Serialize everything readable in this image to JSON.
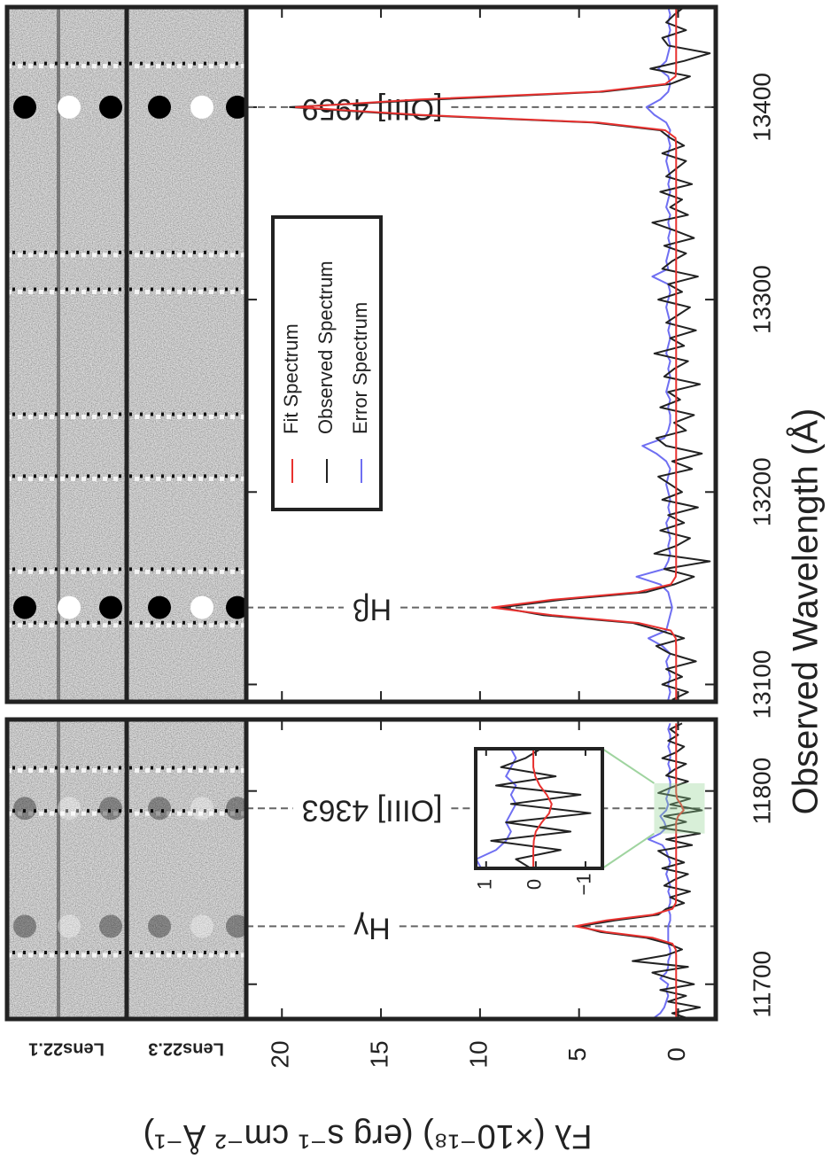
{
  "chart_data": [
    {
      "type": "line",
      "ylabel": "Fλ (×10⁻¹⁸) (erg s⁻¹ cm⁻² Å⁻¹)",
      "strip_labels": [
        "Lens22.1",
        "Lens22.3"
      ],
      "x": [
        11682,
        11685,
        11688,
        11691,
        11694,
        11697,
        11700,
        11703,
        11706,
        11709,
        11712,
        11715,
        11718,
        11721,
        11724,
        11727,
        11730,
        11733,
        11736,
        11739,
        11742,
        11745,
        11748,
        11751,
        11754,
        11757,
        11760,
        11763,
        11766,
        11769,
        11772,
        11775,
        11778,
        11781,
        11784,
        11787,
        11790,
        11793,
        11796,
        11799,
        11802,
        11805,
        11808,
        11811,
        11814,
        11817,
        11820,
        11823,
        11826,
        11829,
        11832,
        11835
      ],
      "xlim": [
        11682,
        11837
      ],
      "xticks": [
        11700,
        11800
      ],
      "ylim": [
        -1.9,
        21.8
      ],
      "yticks": [
        0,
        5,
        10,
        15,
        20
      ],
      "lines": [
        {
          "label": "Hγ",
          "x": 11730
        },
        {
          "label": "[OIII] 4363",
          "x": 11791
        }
      ],
      "series": [
        {
          "color": "#e8312f",
          "values": [
            0.1,
            0.1,
            0.1,
            0.1,
            0.1,
            0.1,
            0.1,
            0.1,
            0.1,
            0.1,
            0.1,
            0.1,
            0.12,
            0.29,
            1.27,
            3.63,
            5.2,
            3.63,
            1.27,
            0.29,
            0.12,
            0.1,
            0.1,
            0.1,
            0.1,
            0.1,
            0.1,
            0.1,
            0.1,
            0.1,
            0.1,
            0.1,
            0.1,
            0.1,
            0.1,
            0.0,
            -0.28,
            -0.15,
            0.05,
            0.1,
            0.1,
            0.1,
            0.1,
            0.1,
            0.1,
            0.1,
            0.1,
            0.1,
            0.1,
            0.1,
            0.1,
            0.1
          ]
        },
        {
          "color": "#222222",
          "values": [
            -0.6,
            0.3,
            -1.1,
            0.5,
            -0.4,
            0.9,
            -0.8,
            0.4,
            1.3,
            -0.5,
            2.3,
            0.6,
            -0.2,
            0.5,
            1.6,
            3.9,
            5.0,
            3.2,
            1.0,
            0.6,
            -0.3,
            0.4,
            -0.6,
            0.7,
            0.2,
            -0.5,
            0.8,
            -0.3,
            0.5,
            1.0,
            -0.7,
            0.6,
            -1.1,
            0.9,
            -0.4,
            0.7,
            -1.2,
            0.4,
            -0.6,
            1.0,
            0.3,
            -0.5,
            0.6,
            0.2,
            -0.4,
            0.8,
            0.1,
            -0.3,
            0.5,
            0.0,
            0.4,
            -0.2
          ]
        },
        {
          "color": "#6f6ff2",
          "values": [
            1.3,
            0.9,
            0.7,
            0.6,
            0.5,
            0.6,
            0.5,
            0.9,
            0.6,
            0.5,
            0.5,
            0.4,
            0.4,
            0.5,
            0.5,
            0.5,
            0.5,
            0.4,
            0.4,
            0.5,
            0.4,
            0.4,
            0.5,
            0.4,
            0.5,
            0.6,
            0.5,
            0.4,
            0.5,
            0.6,
            0.8,
            1.5,
            0.9,
            0.6,
            0.7,
            0.9,
            0.6,
            0.5,
            0.6,
            0.5,
            0.4,
            0.4,
            0.5,
            0.4,
            0.5,
            0.4,
            0.4,
            0.5,
            0.4,
            0.4,
            0.5,
            0.4
          ]
        }
      ]
    },
    {
      "type": "line",
      "xlabel": "Observed Wavelength (Å)",
      "legend": "upper center",
      "x": [
        13092,
        13096,
        13100,
        13104,
        13108,
        13112,
        13116,
        13120,
        13124,
        13128,
        13132,
        13136,
        13140,
        13144,
        13148,
        13152,
        13156,
        13160,
        13164,
        13168,
        13172,
        13176,
        13180,
        13184,
        13188,
        13192,
        13196,
        13200,
        13204,
        13208,
        13212,
        13216,
        13220,
        13224,
        13228,
        13232,
        13236,
        13240,
        13244,
        13248,
        13252,
        13256,
        13260,
        13264,
        13268,
        13272,
        13276,
        13280,
        13284,
        13288,
        13292,
        13296,
        13300,
        13304,
        13308,
        13312,
        13316,
        13320,
        13324,
        13328,
        13332,
        13336,
        13340,
        13344,
        13348,
        13352,
        13356,
        13360,
        13364,
        13368,
        13372,
        13376,
        13380,
        13384,
        13388,
        13392,
        13396,
        13400,
        13404,
        13408,
        13412,
        13416,
        13420,
        13424,
        13428,
        13432,
        13436,
        13440,
        13444,
        13448,
        13452
      ],
      "xlim": [
        13091,
        13452
      ],
      "xticks": [
        13100,
        13200,
        13300,
        13400
      ],
      "ylim": [
        -1.9,
        21.8
      ],
      "yticks": [
        0,
        5,
        10,
        15,
        20
      ],
      "lines": [
        {
          "label": "Hβ",
          "x": 13140
        },
        {
          "label": "[OIII] 4959",
          "x": 13400
        }
      ],
      "series": [
        {
          "name": "Fit Spectrum",
          "color": "#e8312f",
          "values": [
            0.1,
            0.1,
            0.1,
            0.1,
            0.1,
            0.1,
            0.1,
            0.1,
            0.12,
            0.37,
            2.02,
            6.37,
            9.4,
            6.37,
            2.02,
            0.37,
            0.12,
            0.1,
            0.1,
            0.1,
            0.1,
            0.1,
            0.1,
            0.1,
            0.1,
            0.1,
            0.1,
            0.1,
            0.1,
            0.1,
            0.1,
            0.1,
            0.1,
            0.1,
            0.1,
            0.1,
            0.1,
            0.1,
            0.1,
            0.1,
            0.1,
            0.1,
            0.1,
            0.1,
            0.1,
            0.1,
            0.1,
            0.1,
            0.1,
            0.1,
            0.1,
            0.1,
            0.1,
            0.1,
            0.1,
            0.1,
            0.1,
            0.1,
            0.1,
            0.1,
            0.1,
            0.1,
            0.1,
            0.1,
            0.1,
            0.1,
            0.1,
            0.1,
            0.1,
            0.1,
            0.1,
            0.1,
            0.1,
            0.13,
            0.65,
            4.06,
            13.04,
            19.3,
            13.04,
            4.06,
            0.65,
            0.13,
            0.1,
            0.1,
            0.1,
            0.1,
            0.1,
            0.1,
            0.1,
            0.1,
            0.1
          ]
        },
        {
          "name": "Observed Spectrum",
          "color": "#222222",
          "values": [
            0.3,
            -0.5,
            0.8,
            -0.2,
            0.6,
            -0.9,
            0.4,
            1.1,
            -0.3,
            0.9,
            2.3,
            6.8,
            9.0,
            5.9,
            1.6,
            0.2,
            -0.8,
            0.7,
            -1.6,
            1.2,
            0.1,
            -0.6,
            0.9,
            -0.3,
            0.5,
            -1.0,
            0.8,
            -0.2,
            0.4,
            1.0,
            -0.7,
            0.3,
            -1.2,
            0.6,
            1.1,
            -0.4,
            0.2,
            -0.8,
            0.9,
            -0.1,
            0.5,
            -1.1,
            0.7,
            0.2,
            -0.5,
            1.2,
            -0.3,
            0.4,
            -0.9,
            0.6,
            0.0,
            -0.6,
            1.0,
            -0.2,
            0.5,
            -1.0,
            0.8,
            0.3,
            -0.4,
            0.7,
            -0.8,
            0.2,
            1.3,
            -0.5,
            0.4,
            -0.2,
            0.9,
            -0.7,
            0.6,
            0.1,
            -0.4,
            0.8,
            -0.3,
            0.4,
            0.9,
            4.3,
            13.5,
            19.6,
            12.2,
            3.8,
            0.4,
            -0.6,
            1.4,
            -0.3,
            -1.6,
            0.5,
            0.8,
            -0.4,
            0.6,
            0.2,
            -0.3
          ]
        },
        {
          "name": "Error Spectrum",
          "color": "#6f6ff2",
          "values": [
            0.5,
            0.4,
            0.5,
            0.4,
            0.5,
            0.6,
            0.4,
            0.8,
            1.5,
            0.6,
            0.5,
            0.4,
            0.3,
            0.4,
            0.5,
            0.9,
            2.1,
            0.7,
            0.5,
            0.4,
            0.5,
            0.4,
            0.5,
            0.6,
            0.4,
            0.5,
            0.4,
            0.5,
            0.6,
            0.5,
            0.4,
            0.6,
            1.1,
            1.8,
            0.7,
            0.5,
            0.4,
            0.4,
            0.5,
            0.4,
            0.6,
            0.5,
            0.4,
            0.5,
            0.4,
            0.6,
            0.5,
            0.4,
            0.5,
            0.4,
            0.5,
            0.6,
            0.5,
            0.4,
            0.5,
            1.3,
            0.5,
            0.6,
            0.5,
            0.4,
            0.5,
            0.4,
            0.5,
            0.4,
            0.6,
            0.5,
            0.4,
            0.5,
            0.4,
            0.5,
            0.6,
            0.5,
            0.4,
            0.5,
            0.4,
            0.6,
            1.2,
            1.6,
            0.9,
            0.5,
            0.4,
            0.5,
            1.0,
            0.6,
            0.5,
            0.4,
            0.5,
            0.4,
            0.5,
            0.4,
            0.5
          ]
        }
      ]
    },
    {
      "type": "line",
      "x": [
        11778,
        11780,
        11782,
        11784,
        11786,
        11788,
        11790,
        11792,
        11794,
        11796,
        11798,
        11800,
        11802,
        11804
      ],
      "xlim": [
        11778,
        11804
      ],
      "ylim": [
        -1.34,
        1.21
      ],
      "yticks": [
        1,
        0,
        {
          "value": -1,
          "label": "−1"
        }
      ],
      "series": [
        {
          "color": "#e8312f",
          "values": [
            0.05,
            0.05,
            0.05,
            0.04,
            0.0,
            -0.12,
            -0.27,
            -0.32,
            -0.22,
            -0.08,
            0.01,
            0.05,
            0.05,
            0.05
          ]
        },
        {
          "color": "#222222",
          "values": [
            0.1,
            0.4,
            -0.5,
            0.9,
            -0.7,
            0.6,
            -1.1,
            0.5,
            -0.9,
            0.8,
            -0.4,
            0.7,
            0.2,
            -0.1
          ]
        },
        {
          "color": "#6f6ff2",
          "values": [
            1.1,
            1.2,
            0.8,
            0.6,
            0.5,
            0.6,
            0.5,
            0.4,
            0.5,
            0.4,
            0.6,
            0.5,
            0.4,
            0.5
          ]
        }
      ]
    }
  ]
}
